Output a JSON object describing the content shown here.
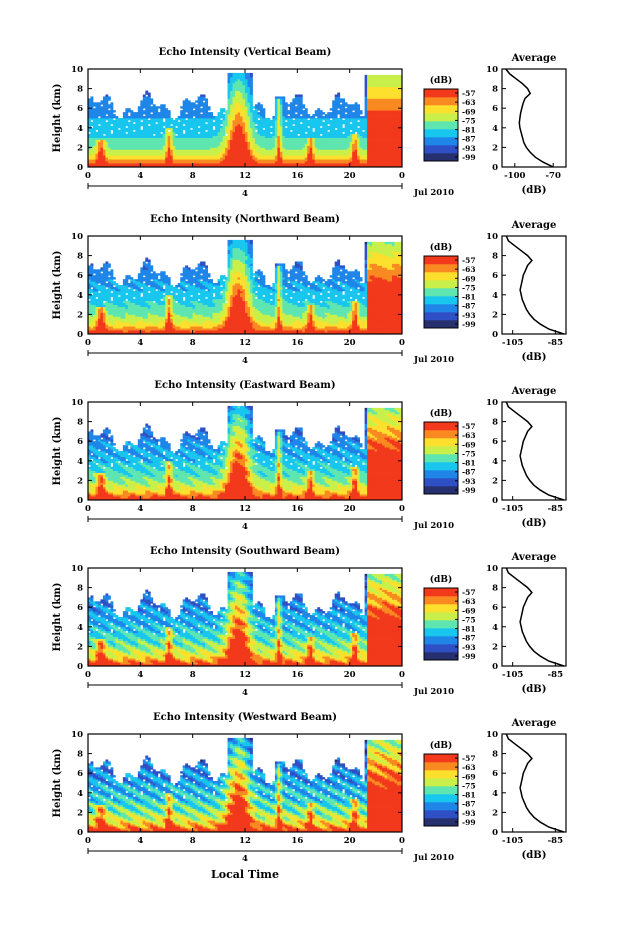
{
  "chart_data": [
    {
      "type": "heatmap",
      "title": "Echo Intensity (Vertical Beam)",
      "ylabel": "Height (km)",
      "x_ticks": [
        "0",
        "4",
        "8",
        "12",
        "16",
        "20",
        "0"
      ],
      "y_ticks": [
        "0",
        "2",
        "4",
        "6",
        "8",
        "10"
      ],
      "ylim": [
        0,
        10
      ],
      "xlim": [
        0,
        24
      ],
      "date_tick": "4",
      "date_label": "Jul 2010",
      "colorbar": {
        "unit": "(dB)",
        "ticks": [
          "-57",
          "-63",
          "-69",
          "-75",
          "-81",
          "-87",
          "-93",
          "-99"
        ]
      },
      "profile": {
        "title": "Average",
        "xlabel": "(dB)",
        "x_ticks": [
          "-100",
          "-70"
        ],
        "xlim": [
          -110,
          -60
        ],
        "heights": [
          0,
          0.5,
          1,
          1.5,
          2,
          2.5,
          3,
          3.5,
          4,
          4.5,
          5,
          5.5,
          6,
          6.5,
          7,
          7.5,
          8,
          8.5,
          9,
          9.5,
          10
        ],
        "values": [
          -70,
          -78,
          -84,
          -88,
          -91,
          -93,
          -94,
          -95,
          -96,
          -96.5,
          -96,
          -95.5,
          -94.5,
          -93.5,
          -92,
          -88,
          -90,
          -94,
          -99,
          -104,
          -107
        ]
      }
    },
    {
      "type": "heatmap",
      "title": "Echo Intensity (Northward Beam)",
      "ylabel": "Height (km)",
      "x_ticks": [
        "0",
        "4",
        "8",
        "12",
        "16",
        "20",
        "0"
      ],
      "y_ticks": [
        "0",
        "2",
        "4",
        "6",
        "8",
        "10"
      ],
      "ylim": [
        0,
        10
      ],
      "xlim": [
        0,
        24
      ],
      "date_tick": "4",
      "date_label": "Jul 2010",
      "colorbar": {
        "unit": "(dB)",
        "ticks": [
          "-57",
          "-63",
          "-69",
          "-75",
          "-81",
          "-87",
          "-93",
          "-99"
        ]
      },
      "profile": {
        "title": "Average",
        "xlabel": "(dB)",
        "x_ticks": [
          "-105",
          "-85"
        ],
        "xlim": [
          -110,
          -80
        ],
        "heights": [
          0,
          0.5,
          1,
          1.5,
          2,
          2.5,
          3,
          3.5,
          4,
          4.5,
          5,
          5.5,
          6,
          6.5,
          7,
          7.5,
          8,
          8.5,
          9,
          9.5,
          10
        ],
        "values": [
          -81,
          -88,
          -92,
          -95,
          -97,
          -98.5,
          -99.5,
          -100.5,
          -101,
          -101.5,
          -101,
          -100.5,
          -100,
          -99,
          -98,
          -96,
          -98,
          -101,
          -104,
          -107,
          -108
        ]
      }
    },
    {
      "type": "heatmap",
      "title": "Echo Intensity (Eastward Beam)",
      "ylabel": "Height (km)",
      "x_ticks": [
        "0",
        "4",
        "8",
        "12",
        "16",
        "20",
        "0"
      ],
      "y_ticks": [
        "0",
        "2",
        "4",
        "6",
        "8",
        "10"
      ],
      "ylim": [
        0,
        10
      ],
      "xlim": [
        0,
        24
      ],
      "date_tick": "4",
      "date_label": "Jul 2010",
      "colorbar": {
        "unit": "(dB)",
        "ticks": [
          "-57",
          "-63",
          "-69",
          "-75",
          "-81",
          "-87",
          "-93",
          "-99"
        ]
      },
      "profile": {
        "title": "Average",
        "xlabel": "(dB)",
        "x_ticks": [
          "-105",
          "-85"
        ],
        "xlim": [
          -110,
          -80
        ],
        "heights": [
          0,
          0.5,
          1,
          1.5,
          2,
          2.5,
          3,
          3.5,
          4,
          4.5,
          5,
          5.5,
          6,
          6.5,
          7,
          7.5,
          8,
          8.5,
          9,
          9.5,
          10
        ],
        "values": [
          -81,
          -88,
          -92,
          -95,
          -97,
          -98.5,
          -99.5,
          -100.5,
          -101,
          -101.5,
          -101,
          -100.5,
          -100,
          -99,
          -98,
          -96,
          -98,
          -101,
          -104,
          -107,
          -108
        ]
      }
    },
    {
      "type": "heatmap",
      "title": "Echo Intensity (Southward Beam)",
      "ylabel": "Height (km)",
      "x_ticks": [
        "0",
        "4",
        "8",
        "12",
        "16",
        "20",
        "0"
      ],
      "y_ticks": [
        "0",
        "2",
        "4",
        "6",
        "8",
        "10"
      ],
      "ylim": [
        0,
        10
      ],
      "xlim": [
        0,
        24
      ],
      "date_tick": "4",
      "date_label": "Jul 2010",
      "colorbar": {
        "unit": "(dB)",
        "ticks": [
          "-57",
          "-63",
          "-69",
          "-75",
          "-81",
          "-87",
          "-93",
          "-99"
        ]
      },
      "profile": {
        "title": "Average",
        "xlabel": "(dB)",
        "x_ticks": [
          "-105",
          "-85"
        ],
        "xlim": [
          -110,
          -80
        ],
        "heights": [
          0,
          0.5,
          1,
          1.5,
          2,
          2.5,
          3,
          3.5,
          4,
          4.5,
          5,
          5.5,
          6,
          6.5,
          7,
          7.5,
          8,
          8.5,
          9,
          9.5,
          10
        ],
        "values": [
          -81,
          -88,
          -92,
          -95,
          -97,
          -98.5,
          -99.5,
          -100.5,
          -101,
          -101.5,
          -101,
          -100.5,
          -100,
          -99,
          -98,
          -96,
          -98,
          -101,
          -104,
          -107,
          -108
        ]
      }
    },
    {
      "type": "heatmap",
      "title": "Echo Intensity (Westward Beam)",
      "ylabel": "Height (km)",
      "x_ticks": [
        "0",
        "4",
        "8",
        "12",
        "16",
        "20",
        "0"
      ],
      "y_ticks": [
        "0",
        "2",
        "4",
        "6",
        "8",
        "10"
      ],
      "ylim": [
        0,
        10
      ],
      "xlim": [
        0,
        24
      ],
      "date_tick": "4",
      "date_label": "Jul 2010",
      "colorbar": {
        "unit": "(dB)",
        "ticks": [
          "-57",
          "-63",
          "-69",
          "-75",
          "-81",
          "-87",
          "-93",
          "-99"
        ]
      },
      "profile": {
        "title": "Average",
        "xlabel": "(dB)",
        "x_ticks": [
          "-105",
          "-85"
        ],
        "xlim": [
          -110,
          -80
        ],
        "heights": [
          0,
          0.5,
          1,
          1.5,
          2,
          2.5,
          3,
          3.5,
          4,
          4.5,
          5,
          5.5,
          6,
          6.5,
          7,
          7.5,
          8,
          8.5,
          9,
          9.5,
          10
        ],
        "values": [
          -81,
          -88,
          -92,
          -95,
          -97,
          -98.5,
          -99.5,
          -100.5,
          -101,
          -101.5,
          -101,
          -100.5,
          -100,
          -99,
          -98,
          -96,
          -98,
          -101,
          -104,
          -107,
          -108
        ]
      }
    }
  ],
  "figure": {
    "xlabel": "Local Time",
    "colorscale": [
      "#26306f",
      "#2f4fc4",
      "#1f86e8",
      "#18c6ee",
      "#5fe6b0",
      "#c9f04a",
      "#fde02e",
      "#f98a22",
      "#f2391c"
    ]
  }
}
